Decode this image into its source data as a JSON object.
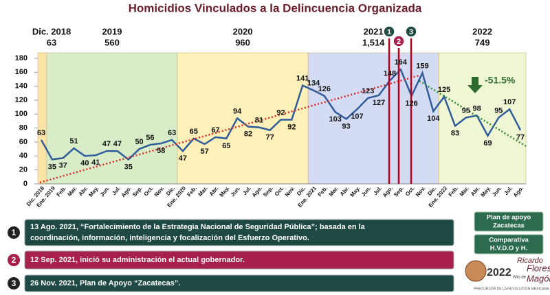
{
  "chart_data": {
    "type": "line",
    "title": "Homicidios Vinculados a la Delincuencia Organizada",
    "categories": [
      "Dic. 2018",
      "Ene. 2019",
      "Feb.",
      "Mar.",
      "Abr.",
      "May.",
      "Jun.",
      "Jul.",
      "Ago.",
      "Sep.",
      "Oct.",
      "Nov.",
      "Dic.",
      "Ene. 2020",
      "Feb.",
      "Mar.",
      "Abr.",
      "May.",
      "Jun.",
      "Jul.",
      "Ago.",
      "Sep.",
      "Oct.",
      "Nov.",
      "Dic.",
      "Ene. 2021",
      "Feb.",
      "Mar.",
      "Abr.",
      "May.",
      "Jun.",
      "Jul.",
      "Ago.",
      "Sep.",
      "Oct.",
      "Nov.",
      "Dic.",
      "Ene. 2022",
      "Feb.",
      "Mar.",
      "Abr.",
      "May.",
      "Jun.",
      "Jul.",
      "Ago."
    ],
    "values": [
      63,
      35,
      37,
      51,
      40,
      41,
      47,
      47,
      35,
      50,
      56,
      58,
      63,
      47,
      65,
      57,
      67,
      65,
      94,
      82,
      81,
      77,
      92,
      92,
      141,
      134,
      126,
      103,
      93,
      107,
      123,
      127,
      148,
      164,
      126,
      159,
      104,
      125,
      83,
      95,
      98,
      69,
      95,
      107,
      77
    ],
    "color": "#2f5b9a",
    "ylim": [
      0,
      180
    ],
    "yticks": [
      0,
      20,
      40,
      60,
      80,
      100,
      120,
      140,
      160,
      180
    ],
    "grid": false,
    "periods": [
      {
        "label": "Dic. 2018",
        "total": "63",
        "color": "#fce3a6"
      },
      {
        "label": "2019",
        "total": "560",
        "color": "#d8ecc8"
      },
      {
        "label": "2020",
        "total": "960",
        "color": "#fdf0b8"
      },
      {
        "label": "2021",
        "total": "1,514",
        "color": "#d4dcf4"
      },
      {
        "label": "2022",
        "total": "749",
        "color": "#eef6d4"
      }
    ],
    "change": "-51.5%",
    "events": [
      {
        "number": "1",
        "text": [
          "13 Ago. 2021, “Fortalecimiento de la Estrategia Nacional de Seguridad Pública”; basada en la",
          "coordinación, información, inteligencia y focalización del Esfuerzo Operativo."
        ],
        "color": "#1f4a43"
      },
      {
        "number": "2",
        "text": [
          "12 Sep. 2021, inició su administración el actual gobernador."
        ],
        "color": "#a8204c"
      },
      {
        "number": "3",
        "text": [
          "26 Nov. 2021, Plan de Apoyo “Zacatecas”."
        ],
        "color": "#1f4a43"
      }
    ],
    "buttons": [
      [
        "Plan de apoyo",
        "Zacatecas"
      ],
      [
        "Comparativa",
        "H.V.D.O y H."
      ]
    ],
    "logo": {
      "year": "2022",
      "pre": "Año de",
      "name1": "Ricardo",
      "name2": "Flores",
      "name3": "Magón",
      "tag": "PRECURSOR DE LA REVOLUCIÓN MEXICANA"
    }
  }
}
